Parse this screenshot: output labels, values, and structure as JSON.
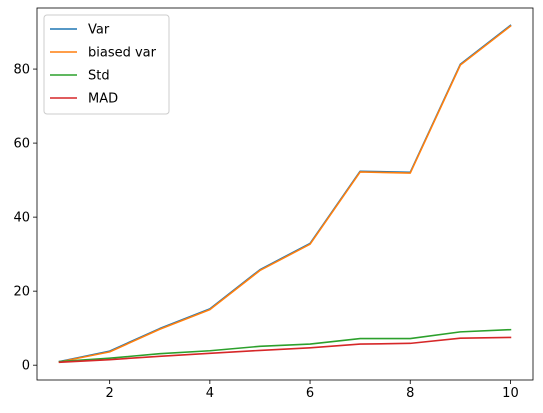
{
  "chart_data": {
    "type": "line",
    "title": "",
    "xlabel": "",
    "ylabel": "",
    "xlim": [
      0.55,
      10.45
    ],
    "ylim": [
      -4.0,
      96.5
    ],
    "grid": false,
    "legend_position": "top-left",
    "x": [
      1,
      2,
      3,
      4,
      5,
      6,
      7,
      8,
      9,
      10
    ],
    "x_ticks": [
      2,
      4,
      6,
      8,
      10
    ],
    "y_ticks": [
      0,
      20,
      40,
      60,
      80
    ],
    "tick_labels": {
      "x": [
        "2",
        "4",
        "6",
        "8",
        "10"
      ],
      "y": [
        "0",
        "20",
        "40",
        "60",
        "80"
      ]
    },
    "series": [
      {
        "name": "Var",
        "color": "#1f77b4",
        "values": [
          1.0,
          3.8,
          9.9,
          15.2,
          25.8,
          32.9,
          52.4,
          52.1,
          81.3,
          91.8
        ]
      },
      {
        "name": "biased var",
        "color": "#ff7f0e",
        "values": [
          0.9,
          3.6,
          9.7,
          15.0,
          25.6,
          32.7,
          52.2,
          51.9,
          81.1,
          91.6
        ]
      },
      {
        "name": "Std",
        "color": "#2ca02c",
        "values": [
          1.0,
          1.9,
          3.1,
          3.9,
          5.1,
          5.7,
          7.2,
          7.2,
          9.0,
          9.6
        ]
      },
      {
        "name": "MAD",
        "color": "#d62728",
        "values": [
          0.8,
          1.5,
          2.4,
          3.2,
          4.0,
          4.7,
          5.7,
          5.9,
          7.3,
          7.5
        ]
      }
    ]
  }
}
